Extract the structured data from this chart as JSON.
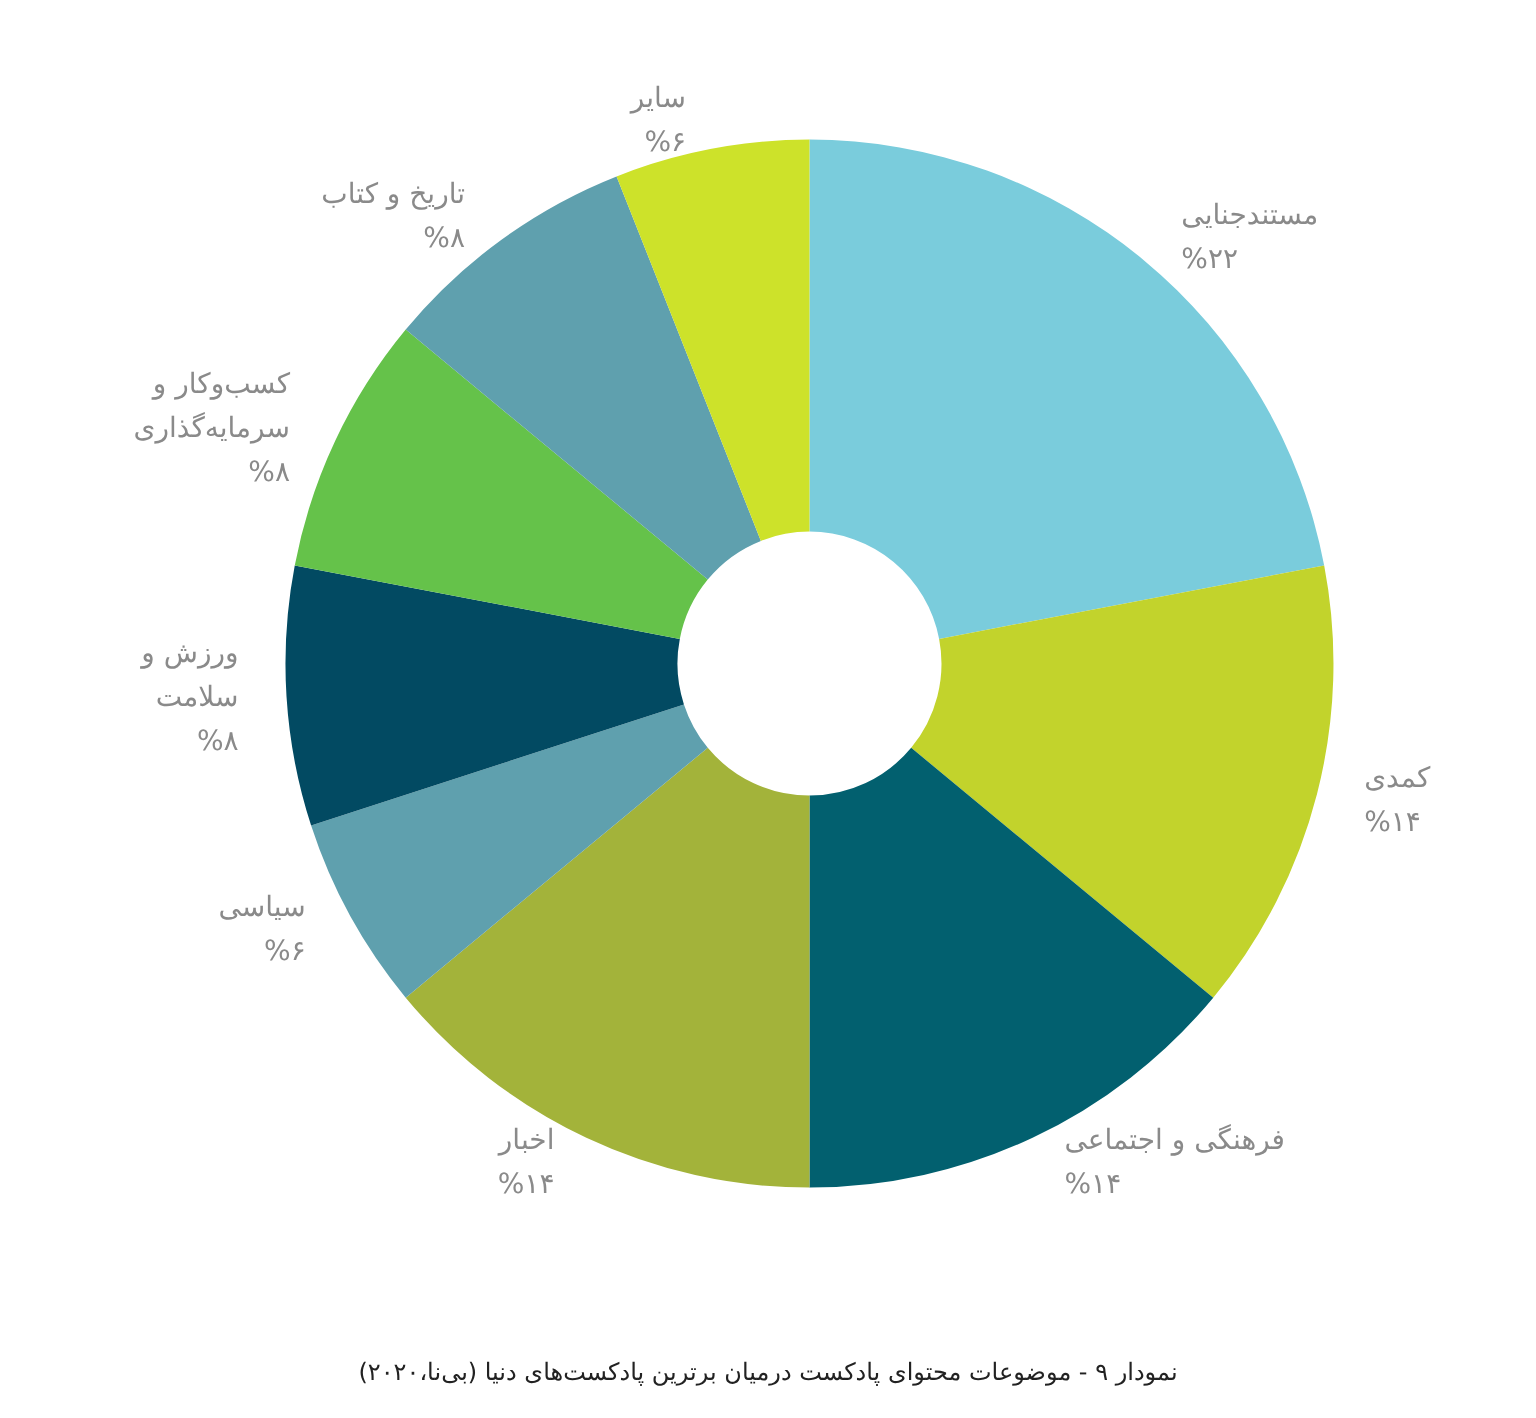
{
  "chart_data": {
    "type": "donut",
    "title": "نمودار ۹ - موضوعات محتوای پادکست درمیان برترین پادکست‌های دنیا (بی‌نا،۲۰۲۰)",
    "categories": [
      "مستندجنایی",
      "کمدی",
      "فرهنگی و اجتماعی",
      "اخبار",
      "سیاسی",
      "ورزش و\nسلامت",
      "کسب‌وکار و\nسرمایه‌گذاری",
      "تاریخ و کتاب",
      "سایر"
    ],
    "values": [
      22,
      14,
      14,
      14,
      6,
      8,
      8,
      8,
      6
    ],
    "value_labels": [
      "%۲۲",
      "%۱۴",
      "%۱۴",
      "%۱۴",
      "%۶",
      "%۸",
      "%۸",
      "%۸",
      "%۶"
    ],
    "colors": [
      "#7accdc",
      "#c2d32c",
      "#02606f",
      "#a3b33a",
      "#5fa0ae",
      "#024a62",
      "#65c24a",
      "#5fa0ae",
      "#cde22a"
    ],
    "legend": false
  }
}
